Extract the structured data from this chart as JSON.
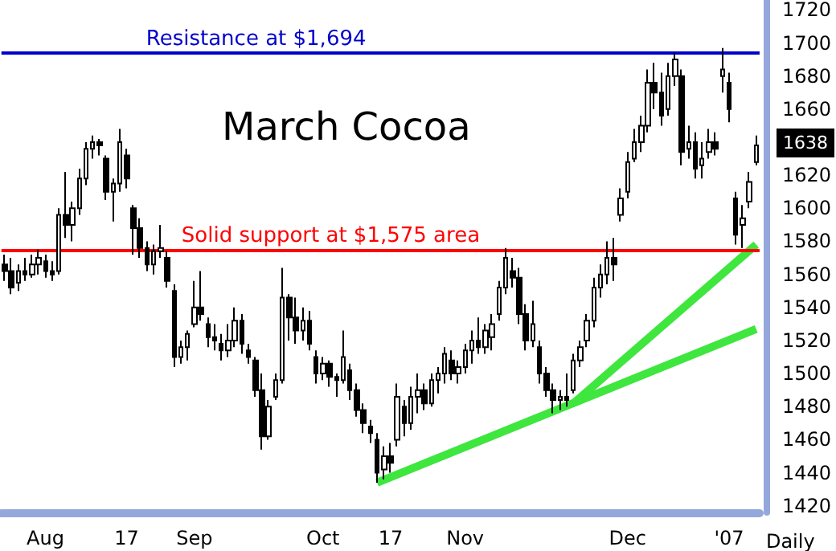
{
  "chart_data": {
    "type": "candlestick",
    "title": "March Cocoa",
    "xlabel": "Daily",
    "color": "#000000",
    "categories": [
      null,
      null,
      null,
      null,
      null,
      null,
      "Aug",
      null,
      null,
      null,
      null,
      null,
      null,
      null,
      null,
      null,
      null,
      null,
      "17",
      null,
      null,
      null,
      null,
      null,
      null,
      null,
      null,
      null,
      "Sep",
      null,
      null,
      null,
      null,
      null,
      null,
      null,
      null,
      null,
      null,
      null,
      null,
      null,
      null,
      null,
      null,
      null,
      null,
      "Oct",
      null,
      null,
      null,
      null,
      null,
      null,
      null,
      null,
      null,
      "17",
      null,
      null,
      null,
      null,
      null,
      null,
      null,
      null,
      null,
      null,
      "Nov",
      null,
      null,
      null,
      null,
      null,
      null,
      null,
      null,
      null,
      null,
      null,
      null,
      null,
      null,
      null,
      null,
      null,
      null,
      null,
      null,
      null,
      null,
      null,
      "Dec",
      null,
      null,
      null,
      null,
      null,
      null,
      null,
      null,
      null,
      null,
      null,
      null,
      null,
      null,
      "'07",
      null,
      null,
      null,
      null
    ],
    "ohlc": [
      [
        1566,
        1572,
        1556,
        1562
      ],
      [
        1562,
        1570,
        1548,
        1552
      ],
      [
        1555,
        1566,
        1550,
        1562
      ],
      [
        1562,
        1570,
        1556,
        1560
      ],
      [
        1560,
        1572,
        1558,
        1566
      ],
      [
        1566,
        1575,
        1560,
        1570
      ],
      [
        1568,
        1572,
        1558,
        1562
      ],
      [
        1562,
        1568,
        1556,
        1560
      ],
      [
        1562,
        1600,
        1560,
        1596
      ],
      [
        1596,
        1622,
        1582,
        1590
      ],
      [
        1590,
        1604,
        1580,
        1600
      ],
      [
        1600,
        1624,
        1596,
        1618
      ],
      [
        1618,
        1640,
        1614,
        1636
      ],
      [
        1636,
        1644,
        1630,
        1640
      ],
      [
        1640,
        1642,
        1632,
        1638
      ],
      [
        1630,
        1632,
        1605,
        1610
      ],
      [
        1610,
        1618,
        1592,
        1615
      ],
      [
        1615,
        1648,
        1610,
        1640
      ],
      [
        1632,
        1636,
        1612,
        1618
      ],
      [
        1600,
        1602,
        1572,
        1588
      ],
      [
        1588,
        1594,
        1570,
        1576
      ],
      [
        1576,
        1580,
        1562,
        1566
      ],
      [
        1566,
        1578,
        1560,
        1574
      ],
      [
        1574,
        1590,
        1570,
        1576
      ],
      [
        1570,
        1574,
        1552,
        1556
      ],
      [
        1550,
        1554,
        1504,
        1510
      ],
      [
        1510,
        1520,
        1506,
        1516
      ],
      [
        1516,
        1526,
        1508,
        1524
      ],
      [
        1530,
        1556,
        1528,
        1540
      ],
      [
        1540,
        1562,
        1532,
        1536
      ],
      [
        1530,
        1534,
        1516,
        1522
      ],
      [
        1522,
        1530,
        1514,
        1520
      ],
      [
        1518,
        1524,
        1508,
        1514
      ],
      [
        1514,
        1530,
        1510,
        1520
      ],
      [
        1520,
        1540,
        1516,
        1532
      ],
      [
        1532,
        1536,
        1512,
        1518
      ],
      [
        1514,
        1518,
        1506,
        1510
      ],
      [
        1508,
        1510,
        1486,
        1490
      ],
      [
        1490,
        1500,
        1454,
        1462
      ],
      [
        1462,
        1484,
        1460,
        1480
      ],
      [
        1486,
        1500,
        1484,
        1496
      ],
      [
        1496,
        1564,
        1494,
        1546
      ],
      [
        1546,
        1548,
        1520,
        1534
      ],
      [
        1534,
        1546,
        1518,
        1526
      ],
      [
        1526,
        1540,
        1520,
        1532
      ],
      [
        1532,
        1538,
        1514,
        1518
      ],
      [
        1510,
        1514,
        1494,
        1500
      ],
      [
        1500,
        1510,
        1496,
        1506
      ],
      [
        1506,
        1508,
        1492,
        1498
      ],
      [
        1498,
        1500,
        1486,
        1496
      ],
      [
        1496,
        1526,
        1494,
        1510
      ],
      [
        1502,
        1506,
        1484,
        1490
      ],
      [
        1490,
        1494,
        1474,
        1478
      ],
      [
        1478,
        1482,
        1464,
        1470
      ],
      [
        1468,
        1472,
        1458,
        1464
      ],
      [
        1460,
        1464,
        1434,
        1440
      ],
      [
        1442,
        1456,
        1436,
        1450
      ],
      [
        1450,
        1458,
        1440,
        1446
      ],
      [
        1460,
        1494,
        1456,
        1486
      ],
      [
        1480,
        1484,
        1462,
        1470
      ],
      [
        1470,
        1492,
        1466,
        1486
      ],
      [
        1486,
        1500,
        1476,
        1490
      ],
      [
        1490,
        1494,
        1478,
        1482
      ],
      [
        1482,
        1500,
        1480,
        1496
      ],
      [
        1496,
        1504,
        1488,
        1500
      ],
      [
        1500,
        1516,
        1494,
        1512
      ],
      [
        1508,
        1514,
        1496,
        1500
      ],
      [
        1500,
        1508,
        1494,
        1504
      ],
      [
        1504,
        1518,
        1500,
        1514
      ],
      [
        1514,
        1526,
        1506,
        1520
      ],
      [
        1520,
        1534,
        1512,
        1516
      ],
      [
        1516,
        1530,
        1512,
        1526
      ],
      [
        1522,
        1536,
        1514,
        1530
      ],
      [
        1536,
        1556,
        1532,
        1552
      ],
      [
        1552,
        1576,
        1548,
        1570
      ],
      [
        1562,
        1570,
        1552,
        1558
      ],
      [
        1558,
        1564,
        1530,
        1536
      ],
      [
        1536,
        1542,
        1514,
        1520
      ],
      [
        1520,
        1544,
        1516,
        1530
      ],
      [
        1516,
        1520,
        1494,
        1500
      ],
      [
        1500,
        1504,
        1486,
        1490
      ],
      [
        1490,
        1494,
        1476,
        1484
      ],
      [
        1484,
        1490,
        1478,
        1486
      ],
      [
        1486,
        1500,
        1480,
        1484
      ],
      [
        1490,
        1512,
        1488,
        1508
      ],
      [
        1508,
        1520,
        1504,
        1516
      ],
      [
        1520,
        1536,
        1516,
        1532
      ],
      [
        1532,
        1558,
        1528,
        1552
      ],
      [
        1552,
        1566,
        1546,
        1560
      ],
      [
        1560,
        1580,
        1554,
        1570
      ],
      [
        1570,
        1582,
        1556,
        1566
      ],
      [
        1596,
        1612,
        1592,
        1606
      ],
      [
        1610,
        1634,
        1606,
        1628
      ],
      [
        1630,
        1648,
        1628,
        1640
      ],
      [
        1640,
        1656,
        1634,
        1650
      ],
      [
        1650,
        1684,
        1646,
        1676
      ],
      [
        1676,
        1688,
        1660,
        1670
      ],
      [
        1670,
        1682,
        1650,
        1656
      ],
      [
        1660,
        1688,
        1656,
        1680
      ],
      [
        1680,
        1694,
        1674,
        1690
      ],
      [
        1680,
        1684,
        1626,
        1634
      ],
      [
        1636,
        1650,
        1630,
        1640
      ],
      [
        1640,
        1646,
        1618,
        1624
      ],
      [
        1626,
        1640,
        1618,
        1630
      ],
      [
        1634,
        1648,
        1630,
        1640
      ],
      [
        1640,
        1646,
        1632,
        1636
      ],
      [
        1680,
        1697,
        1670,
        1684
      ],
      [
        1676,
        1682,
        1652,
        1660
      ],
      [
        1606,
        1610,
        1578,
        1584
      ],
      [
        1590,
        1602,
        1576,
        1594
      ],
      [
        1604,
        1622,
        1600,
        1616
      ],
      [
        1628,
        1644,
        1626,
        1638
      ]
    ],
    "series": [
      {
        "type": "line",
        "color": "#3ee63e",
        "values": [
          null,
          null,
          null,
          null,
          null,
          null,
          null,
          null,
          null,
          null,
          null,
          null,
          null,
          null,
          null,
          null,
          null,
          null,
          null,
          null,
          null,
          null,
          null,
          null,
          null,
          null,
          null,
          null,
          null,
          null,
          null,
          null,
          null,
          null,
          null,
          null,
          null,
          null,
          null,
          null,
          null,
          null,
          null,
          null,
          null,
          null,
          null,
          null,
          null,
          null,
          null,
          null,
          null,
          null,
          null,
          1434,
          null,
          null,
          null,
          null,
          null,
          null,
          null,
          null,
          null,
          null,
          null,
          null,
          null,
          null,
          null,
          null,
          null,
          null,
          null,
          null,
          null,
          null,
          null,
          null,
          null,
          null,
          null,
          null,
          null,
          null,
          null,
          null,
          null,
          null,
          null,
          null,
          null,
          null,
          null,
          null,
          null,
          null,
          null,
          null,
          null,
          null,
          null,
          null,
          null,
          null,
          null,
          null,
          null,
          null,
          null,
          1527
        ]
      },
      {
        "type": "line",
        "color": "#3ee63e",
        "values": [
          null,
          null,
          null,
          null,
          null,
          null,
          null,
          null,
          null,
          null,
          null,
          null,
          null,
          null,
          null,
          null,
          null,
          null,
          null,
          null,
          null,
          null,
          null,
          null,
          null,
          null,
          null,
          null,
          null,
          null,
          null,
          null,
          null,
          null,
          null,
          null,
          null,
          null,
          null,
          null,
          null,
          null,
          null,
          null,
          null,
          null,
          null,
          null,
          null,
          null,
          null,
          null,
          null,
          null,
          null,
          null,
          null,
          null,
          null,
          null,
          null,
          null,
          null,
          null,
          null,
          null,
          null,
          null,
          null,
          null,
          null,
          null,
          null,
          null,
          null,
          null,
          null,
          null,
          null,
          null,
          null,
          null,
          null,
          null,
          1482,
          null,
          null,
          null,
          null,
          null,
          null,
          null,
          null,
          null,
          null,
          null,
          null,
          null,
          null,
          null,
          null,
          null,
          null,
          null,
          null,
          null,
          null,
          null,
          null,
          null,
          null,
          1578
        ]
      }
    ],
    "ylim": [
      1416,
      1726
    ],
    "yticks": [
      1420,
      1440,
      1460,
      1480,
      1500,
      1520,
      1540,
      1560,
      1580,
      1600,
      1620,
      1660,
      1680,
      1700,
      1720
    ],
    "ref_lines": [
      {
        "axis": "y",
        "value": 1694,
        "label": "Resistance at $1,694",
        "color": "#0000cc"
      },
      {
        "axis": "y",
        "value": 1575,
        "label": "Solid support at $1,575 area",
        "color": "#ff0000"
      }
    ],
    "annotations": [
      "1638"
    ],
    "grid": false
  }
}
